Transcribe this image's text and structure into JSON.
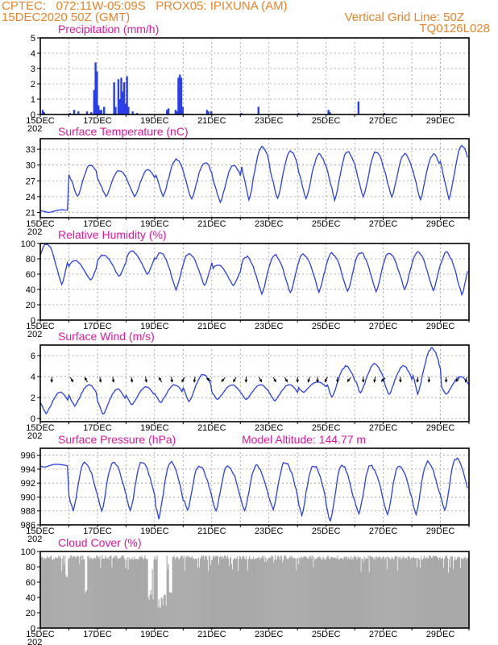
{
  "header": {
    "line1_left": "CPTEC:   072:11W-05:09S   PROX05: IPIXUNA (AM)",
    "line2_left": "15DEC2020 50Z (GMT)",
    "line2_right": "Vertical Grid Line: 50Z",
    "line3_right": "TQ0126L028"
  },
  "colors": {
    "header": "#e8832a",
    "title": "#e0189a",
    "series": "#2a3fe8",
    "cloud": "#a9a9a9"
  },
  "x_axis": {
    "date_labels": [
      "15DEC",
      "17DEC",
      "19DEC",
      "21DEC",
      "23DEC",
      "25DEC",
      "27DEC",
      "29DEC"
    ],
    "year_fragment": "202",
    "days": 15
  },
  "chart_data": [
    {
      "id": "precip",
      "type": "bar",
      "title": "Precipitation  (mm/h)",
      "ylim": [
        0,
        5
      ],
      "yticks": [
        0,
        1,
        2,
        3,
        4,
        5
      ],
      "grid": true,
      "bars": [
        [
          0.05,
          0.3
        ],
        [
          0.1,
          0.15
        ],
        [
          1.0,
          0.1
        ],
        [
          1.15,
          0.3
        ],
        [
          1.3,
          0.2
        ],
        [
          1.6,
          0.2
        ],
        [
          1.75,
          0.15
        ],
        [
          1.85,
          1.6
        ],
        [
          1.9,
          3.4
        ],
        [
          1.95,
          2.8
        ],
        [
          2.0,
          0.6
        ],
        [
          2.05,
          0.3
        ],
        [
          2.1,
          0.3
        ],
        [
          2.2,
          0.5
        ],
        [
          2.55,
          2.1
        ],
        [
          2.6,
          0.5
        ],
        [
          2.7,
          2.3
        ],
        [
          2.75,
          1.0
        ],
        [
          2.8,
          2.4
        ],
        [
          2.85,
          1.5
        ],
        [
          2.9,
          2.1
        ],
        [
          2.95,
          0.7
        ],
        [
          3.0,
          2.5
        ],
        [
          3.05,
          0.5
        ],
        [
          3.2,
          0.2
        ],
        [
          3.35,
          0.1
        ],
        [
          3.8,
          0.05
        ],
        [
          4.4,
          0.3
        ],
        [
          4.45,
          0.4
        ],
        [
          4.7,
          0.3
        ],
        [
          4.75,
          0.2
        ],
        [
          4.8,
          2.4
        ],
        [
          4.85,
          2.6
        ],
        [
          4.9,
          2.4
        ],
        [
          4.95,
          0.5
        ],
        [
          5.1,
          0.05
        ],
        [
          5.8,
          0.3
        ],
        [
          5.85,
          0.2
        ],
        [
          5.95,
          0.2
        ],
        [
          6.6,
          0.05
        ],
        [
          7.0,
          0.1
        ],
        [
          7.6,
          0.5
        ],
        [
          8.4,
          0.05
        ],
        [
          9.0,
          0.1
        ],
        [
          10.05,
          0.3
        ],
        [
          10.1,
          0.15
        ],
        [
          11.1,
          0.85
        ],
        [
          12.0,
          0.1
        ],
        [
          13.3,
          0.05
        ],
        [
          14.0,
          0.05
        ],
        [
          14.8,
          0.05
        ]
      ]
    },
    {
      "id": "temp",
      "type": "line",
      "title": "Surface Temperature  (nC)",
      "ylim": [
        20,
        35
      ],
      "yticks": [
        21,
        24,
        27,
        30,
        33
      ],
      "grid": true,
      "series": [
        {
          "daily_min": [
            21,
            24,
            24,
            24,
            24,
            23.5,
            23,
            23.5,
            23.5,
            23.5,
            23.5,
            24,
            24,
            23.5,
            23.5
          ],
          "daily_max": [
            21.5,
            30,
            29,
            29,
            31,
            30.5,
            30,
            33.5,
            32.5,
            32,
            32.5,
            32.5,
            32,
            32,
            33.5
          ]
        }
      ]
    },
    {
      "id": "rh",
      "type": "line",
      "title": "Relative Humidity  (%)",
      "ylim": [
        0,
        100
      ],
      "yticks": [
        0,
        20,
        40,
        60,
        80,
        100
      ],
      "grid": true,
      "series": [
        {
          "daily_min": [
            47,
            52,
            57,
            60,
            40,
            45,
            45,
            35,
            36,
            37,
            37,
            38,
            40,
            38,
            34
          ],
          "daily_max": [
            100,
            78,
            85,
            90,
            88,
            87,
            72,
            83,
            85,
            86,
            87,
            88,
            88,
            89,
            88
          ]
        }
      ]
    },
    {
      "id": "wind",
      "type": "line",
      "title": "Surface Wind  (m/s)",
      "ylim": [
        -0.3,
        7
      ],
      "yticks": [
        0,
        2,
        4,
        6
      ],
      "grid": true,
      "series": [
        {
          "daily_min": [
            0.5,
            1.2,
            0.4,
            1.3,
            1.5,
            1.6,
            1.8,
            1.8,
            1.7,
            2.5,
            2.0,
            2.4,
            2.3,
            2.4,
            2.3
          ],
          "daily_max": [
            2.5,
            3.2,
            2.8,
            3.0,
            3.2,
            4.2,
            3.2,
            3.2,
            3.2,
            3.5,
            5.0,
            5.2,
            5.0,
            6.7,
            4.0
          ]
        }
      ],
      "arrows": [
        [
          0.4,
          180
        ],
        [
          1.1,
          150
        ],
        [
          1.6,
          330
        ],
        [
          2.1,
          170
        ],
        [
          2.55,
          170
        ],
        [
          3.2,
          170
        ],
        [
          3.7,
          170
        ],
        [
          4.2,
          330
        ],
        [
          4.6,
          170
        ],
        [
          5.0,
          210
        ],
        [
          5.4,
          190
        ],
        [
          5.9,
          300
        ],
        [
          6.4,
          220
        ],
        [
          6.8,
          210
        ],
        [
          7.2,
          180
        ],
        [
          7.7,
          150
        ],
        [
          8.2,
          150
        ],
        [
          8.6,
          150
        ],
        [
          9.0,
          180
        ],
        [
          9.4,
          200
        ],
        [
          9.7,
          180
        ],
        [
          10.0,
          210
        ],
        [
          10.4,
          180
        ],
        [
          10.8,
          220
        ],
        [
          11.3,
          180
        ],
        [
          11.7,
          190
        ],
        [
          12.0,
          230
        ],
        [
          12.6,
          180
        ],
        [
          13.2,
          190
        ],
        [
          13.6,
          180
        ],
        [
          14.2,
          180
        ],
        [
          14.6,
          220
        ],
        [
          14.9,
          200
        ]
      ]
    },
    {
      "id": "press",
      "type": "line",
      "title": "Surface Pressure  (hPa)",
      "subtitle": "Model Altitude: 144.77  m",
      "ylim": [
        986,
        997
      ],
      "yticks": [
        986,
        988,
        990,
        992,
        994,
        996
      ],
      "grid": true,
      "series": [
        {
          "daily_min": [
            994.3,
            988,
            988,
            988,
            987,
            988,
            988,
            988,
            988,
            987.5,
            986.5,
            987.5,
            987.5,
            987.5,
            988
          ],
          "daily_max": [
            994.7,
            995,
            995,
            995,
            995,
            994.5,
            994.5,
            994.5,
            995,
            994.5,
            994.5,
            994.5,
            994.5,
            995,
            995.5
          ]
        }
      ]
    },
    {
      "id": "cloud",
      "type": "bar",
      "title": "Cloud Cover  (%)",
      "ylim": [
        0,
        100
      ],
      "yticks": [
        0,
        20,
        40,
        60,
        80,
        100
      ],
      "grid": false,
      "typical_value": 95
    }
  ]
}
